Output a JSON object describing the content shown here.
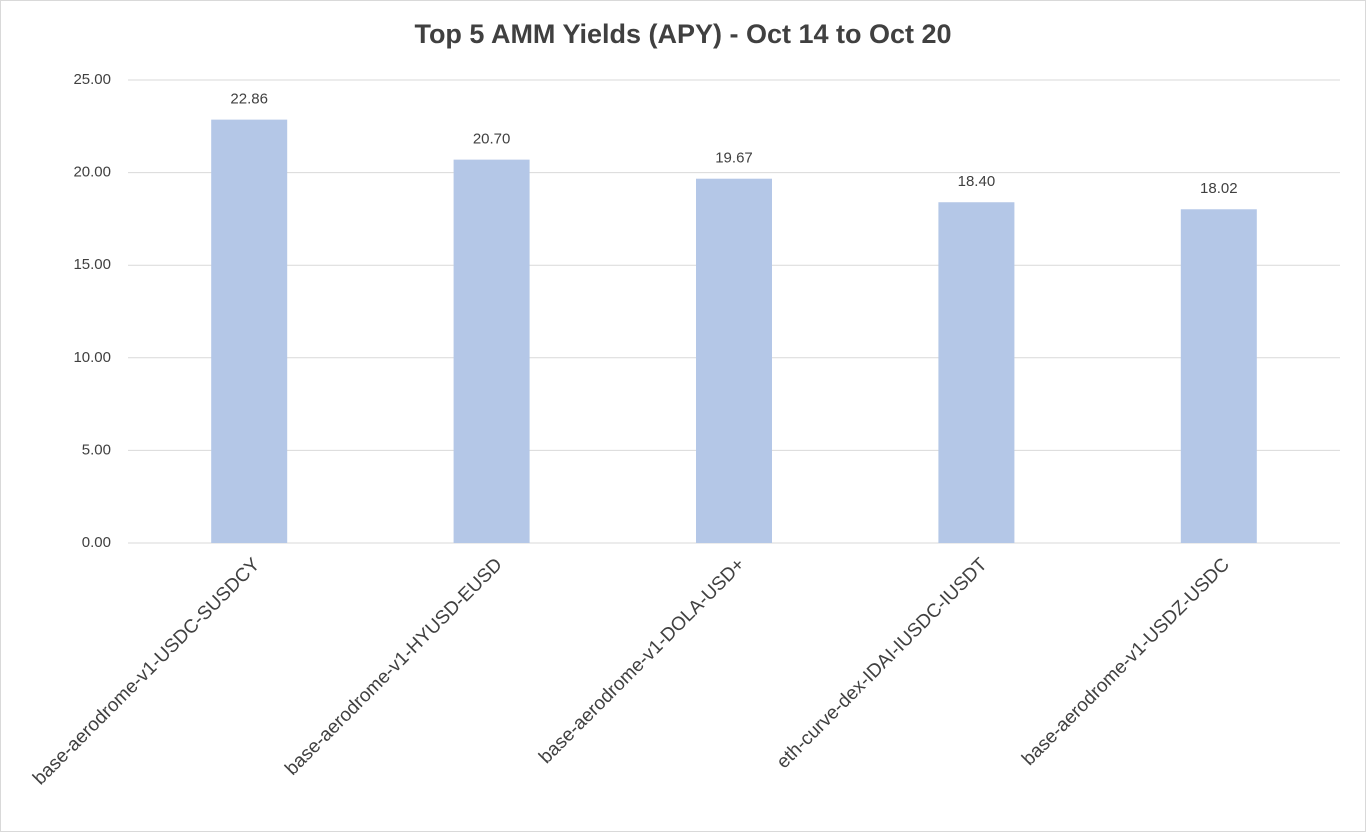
{
  "chart_data": {
    "type": "bar",
    "title": "Top 5 AMM Yields (APY) - Oct 14 to Oct 20",
    "categories": [
      "base-aerodrome-v1-USDC-SUSDCY",
      "base-aerodrome-v1-HYUSD-EUSD",
      "base-aerodrome-v1-DOLA-USD+",
      "eth-curve-dex-IDAI-IUSDC-IUSDT",
      "base-aerodrome-v1-USDZ-USDC"
    ],
    "values": [
      22.86,
      20.7,
      19.67,
      18.4,
      18.02
    ],
    "value_labels": [
      "22.86",
      "20.70",
      "19.67",
      "18.40",
      "18.02"
    ],
    "color": "#b4c7e7",
    "ylim": [
      0,
      25
    ],
    "yticks": [
      {
        "value": 0,
        "label": "0.00"
      },
      {
        "value": 5,
        "label": "5.00"
      },
      {
        "value": 10,
        "label": "10.00"
      },
      {
        "value": 15,
        "label": "15.00"
      },
      {
        "value": 20,
        "label": "20.00"
      },
      {
        "value": 25,
        "label": "25.00"
      }
    ],
    "grid": true
  }
}
